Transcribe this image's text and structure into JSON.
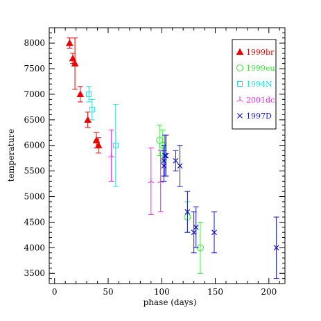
{
  "chart_data": {
    "type": "scatter",
    "xlabel": "phase (days)",
    "ylabel": "temperature",
    "xlim": [
      -5,
      215
    ],
    "ylim": [
      3300,
      8300
    ],
    "x_ticks": [
      0,
      50,
      100,
      150,
      200
    ],
    "y_ticks": [
      3500,
      4000,
      4500,
      5000,
      5500,
      6000,
      6500,
      7000,
      7500,
      8000
    ],
    "grid": false,
    "legend_position": "top-right",
    "series": [
      {
        "name": "1999br",
        "color": "#ee0000",
        "marker": "filled-triangle",
        "points": [
          {
            "x": 14,
            "y": 8000,
            "err": 100
          },
          {
            "x": 17,
            "y": 7700,
            "err": 100
          },
          {
            "x": 19,
            "y": 7600,
            "err": 500
          },
          {
            "x": 24,
            "y": 7000,
            "err": 150
          },
          {
            "x": 31,
            "y": 6500,
            "err": 150
          },
          {
            "x": 39,
            "y": 6100,
            "err": 150
          },
          {
            "x": 41,
            "y": 6000,
            "err": 150
          }
        ]
      },
      {
        "name": "1999eu",
        "color": "#33ee33",
        "marker": "open-circle",
        "points": [
          {
            "x": 98,
            "y": 6100,
            "err": 300
          },
          {
            "x": 101,
            "y": 6000,
            "err": 300
          },
          {
            "x": 124,
            "y": 4600,
            "err": 300
          },
          {
            "x": 136,
            "y": 4000,
            "err": 500
          }
        ]
      },
      {
        "name": "1994N",
        "color": "#22dddd",
        "marker": "open-square",
        "points": [
          {
            "x": 32,
            "y": 7000,
            "err": 150
          },
          {
            "x": 35,
            "y": 6700,
            "err": 200
          },
          {
            "x": 57,
            "y": 6000,
            "err": 800
          }
        ]
      },
      {
        "name": "2001dc",
        "color": "#ee22ee",
        "marker": "tri-star",
        "points": [
          {
            "x": 53,
            "y": 5800,
            "err": 500
          },
          {
            "x": 90,
            "y": 5300,
            "err": 650
          },
          {
            "x": 99,
            "y": 5300,
            "err": 600
          }
        ]
      },
      {
        "name": "1997D",
        "color": "#1111cc",
        "marker": "cross",
        "points": [
          {
            "x": 102,
            "y": 5700,
            "err": 300
          },
          {
            "x": 102,
            "y": 5600,
            "err": 300
          },
          {
            "x": 103,
            "y": 5800,
            "err": 400
          },
          {
            "x": 104,
            "y": 5800,
            "err": 400
          },
          {
            "x": 113,
            "y": 5700,
            "err": 200
          },
          {
            "x": 117,
            "y": 5600,
            "err": 400
          },
          {
            "x": 124,
            "y": 4700,
            "err": 400
          },
          {
            "x": 130,
            "y": 4300,
            "err": 400
          },
          {
            "x": 132,
            "y": 4400,
            "err": 400
          },
          {
            "x": 149,
            "y": 4300,
            "err": 400
          },
          {
            "x": 207,
            "y": 4000,
            "err": 600
          }
        ]
      }
    ]
  }
}
